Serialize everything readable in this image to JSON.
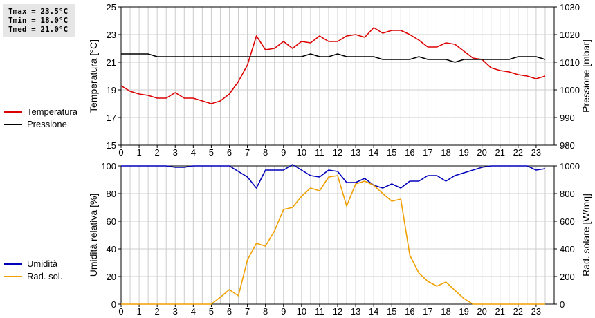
{
  "stats": {
    "tmax": "Tmax = 23.5°C",
    "tmin": "Tmin = 18.0°C",
    "tmed": "Tmed = 21.0°C"
  },
  "colors": {
    "temperature": "#dd0000",
    "pressure": "#000000",
    "humidity": "#0000bb",
    "solar": "#f0a000",
    "grid": "#cccccc"
  },
  "chart_data": [
    {
      "type": "line",
      "x_label": "",
      "x_ticks": [
        "0",
        "1",
        "2",
        "3",
        "4",
        "5",
        "6",
        "7",
        "8",
        "9",
        "10",
        "11",
        "12",
        "13",
        "14",
        "15",
        "16",
        "17",
        "18",
        "19",
        "20",
        "21",
        "22",
        "23"
      ],
      "xlim": [
        0,
        24
      ],
      "y_left": {
        "label": "Temperatura [°C]",
        "lim": [
          15,
          25
        ],
        "ticks": [
          "15",
          "17",
          "19",
          "21",
          "23",
          "25"
        ]
      },
      "y_right": {
        "label": "Pressione [mbar]",
        "lim": [
          980,
          1030
        ],
        "ticks": [
          "980",
          "990",
          "1000",
          "1010",
          "1020",
          "1030"
        ]
      },
      "grid": true,
      "legend_position": "left",
      "series": [
        {
          "name": "Temperatura",
          "axis": "left",
          "color": "#dd0000",
          "x": [
            0,
            0.5,
            1,
            1.5,
            2,
            2.5,
            3,
            3.5,
            4,
            4.5,
            5,
            5.5,
            6,
            6.5,
            7,
            7.5,
            8,
            8.5,
            9,
            9.5,
            10,
            10.5,
            11,
            11.5,
            12,
            12.5,
            13,
            13.5,
            14,
            14.5,
            15,
            15.5,
            16,
            16.5,
            17,
            17.5,
            18,
            18.5,
            19,
            19.5,
            20,
            20.5,
            21,
            21.5,
            22,
            22.5,
            23,
            23.5
          ],
          "y": [
            19.3,
            18.9,
            18.7,
            18.6,
            18.4,
            18.4,
            18.8,
            18.4,
            18.4,
            18.2,
            18.0,
            18.2,
            18.7,
            19.6,
            20.8,
            22.9,
            21.9,
            22.0,
            22.5,
            22.0,
            22.5,
            22.4,
            22.9,
            22.5,
            22.5,
            22.9,
            23.0,
            22.8,
            23.5,
            23.1,
            23.3,
            23.3,
            23.0,
            22.6,
            22.1,
            22.1,
            22.4,
            22.3,
            21.8,
            21.3,
            21.2,
            20.6,
            20.4,
            20.3,
            20.1,
            20.0,
            19.8,
            20.0
          ]
        },
        {
          "name": "Pressione",
          "axis": "right",
          "color": "#000000",
          "x": [
            0,
            0.5,
            1,
            1.5,
            2,
            2.5,
            3,
            3.5,
            4,
            4.5,
            5,
            5.5,
            6,
            6.5,
            7,
            7.5,
            8,
            8.5,
            9,
            9.5,
            10,
            10.5,
            11,
            11.5,
            12,
            12.5,
            13,
            13.5,
            14,
            14.5,
            15,
            15.5,
            16,
            16.5,
            17,
            17.5,
            18,
            18.5,
            19,
            19.5,
            20,
            20.5,
            21,
            21.5,
            22,
            22.5,
            23,
            23.5
          ],
          "y": [
            1013,
            1013,
            1013,
            1013,
            1012,
            1012,
            1012,
            1012,
            1012,
            1012,
            1012,
            1012,
            1012,
            1012,
            1012,
            1012,
            1012,
            1012,
            1012,
            1012,
            1012,
            1013,
            1012,
            1012,
            1013,
            1012,
            1012,
            1012,
            1012,
            1011,
            1011,
            1011,
            1011,
            1012,
            1011,
            1011,
            1011,
            1010,
            1011,
            1011,
            1011,
            1011,
            1011,
            1011,
            1012,
            1012,
            1012,
            1011
          ]
        }
      ]
    },
    {
      "type": "line",
      "x_label": "",
      "x_ticks": [
        "0",
        "1",
        "2",
        "3",
        "4",
        "5",
        "6",
        "7",
        "8",
        "9",
        "10",
        "11",
        "12",
        "13",
        "14",
        "15",
        "16",
        "17",
        "18",
        "19",
        "20",
        "21",
        "22",
        "23"
      ],
      "xlim": [
        0,
        24
      ],
      "y_left": {
        "label": "Umidità relativa [%]",
        "lim": [
          0,
          100
        ],
        "ticks": [
          "0",
          "20",
          "40",
          "60",
          "80",
          "100"
        ]
      },
      "y_right": {
        "label": "Rad. solare [W/mq]",
        "lim": [
          0,
          1000
        ],
        "ticks": [
          "0",
          "200",
          "400",
          "600",
          "800",
          "1000"
        ]
      },
      "grid": true,
      "legend_position": "left",
      "series": [
        {
          "name": "Umidità",
          "axis": "left",
          "color": "#0000bb",
          "x": [
            0,
            0.5,
            1,
            1.5,
            2,
            2.5,
            3,
            3.5,
            4,
            4.5,
            5,
            5.5,
            6,
            6.5,
            7,
            7.5,
            8,
            8.5,
            9,
            9.5,
            10,
            10.5,
            11,
            11.5,
            12,
            12.5,
            13,
            13.5,
            14,
            14.5,
            15,
            15.5,
            16,
            16.5,
            17,
            17.5,
            18,
            18.5,
            19,
            19.5,
            20,
            20.5,
            21,
            21.5,
            22,
            22.5,
            23,
            23.5
          ],
          "y": [
            100,
            100,
            100,
            100,
            100,
            100,
            99,
            99,
            100,
            100,
            100,
            100,
            100,
            96,
            92,
            84,
            97,
            97,
            97,
            101,
            97,
            93,
            92,
            97,
            96,
            88,
            88,
            91,
            86,
            84,
            87,
            84,
            89,
            89,
            93,
            93,
            89,
            93,
            95,
            97,
            99,
            100,
            100,
            100,
            100,
            100,
            97,
            98
          ]
        },
        {
          "name": "Rad. sol.",
          "axis": "right",
          "color": "#f0a000",
          "x": [
            0,
            0.5,
            1,
            1.5,
            2,
            2.5,
            3,
            3.5,
            4,
            4.5,
            5,
            5.5,
            6,
            6.5,
            7,
            7.5,
            8,
            8.5,
            9,
            9.5,
            10,
            10.5,
            11,
            11.5,
            12,
            12.5,
            13,
            13.5,
            14,
            14.5,
            15,
            15.5,
            16,
            16.5,
            17,
            17.5,
            18,
            18.5,
            19,
            19.5,
            20,
            20.5,
            21,
            21.5,
            22,
            22.5,
            23,
            23.5
          ],
          "y": [
            0,
            0,
            0,
            0,
            0,
            0,
            0,
            0,
            0,
            0,
            0,
            50,
            105,
            60,
            320,
            440,
            420,
            530,
            685,
            700,
            780,
            840,
            820,
            920,
            930,
            710,
            870,
            890,
            860,
            800,
            745,
            760,
            355,
            225,
            165,
            130,
            160,
            100,
            40,
            0,
            0,
            0,
            0,
            0,
            0,
            0,
            0,
            0
          ]
        }
      ]
    }
  ]
}
